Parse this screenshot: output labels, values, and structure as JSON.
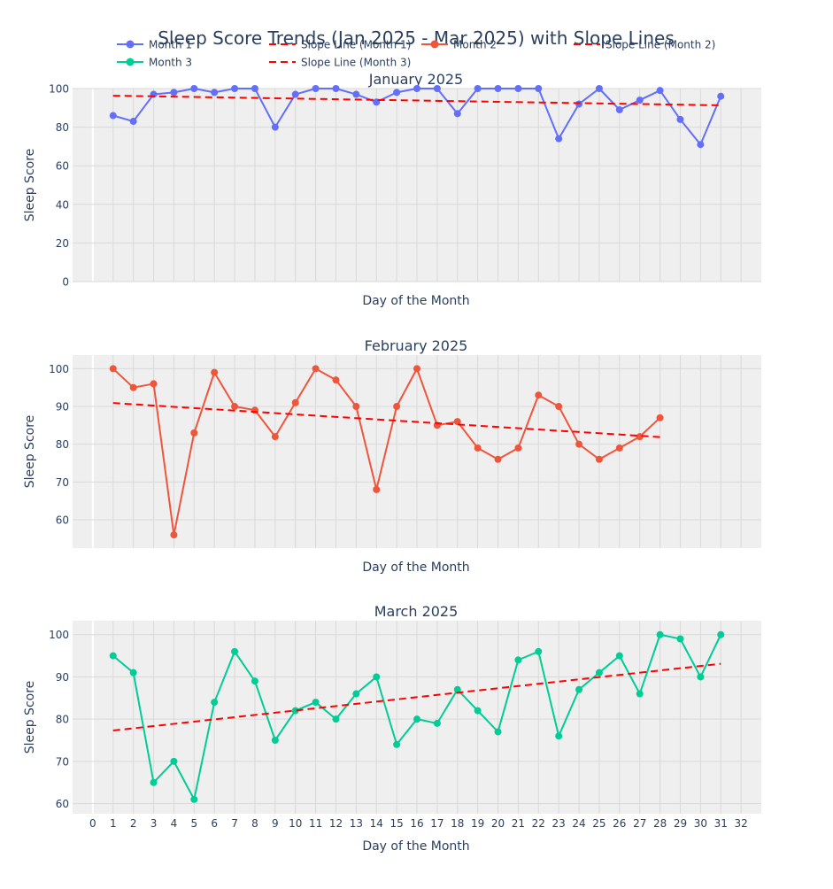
{
  "title": "Sleep Score Trends (Jan 2025 - Mar 2025) with Slope Lines",
  "legend": [
    {
      "name": "Month 1",
      "kind": "markers+lines",
      "color": "#636efa"
    },
    {
      "name": "Slope Line (Month 1)",
      "kind": "dash",
      "color": "#ff0000"
    },
    {
      "name": "Month 2",
      "kind": "markers+lines",
      "color": "#ef553b"
    },
    {
      "name": "Slope Line (Month 2)",
      "kind": "dash",
      "color": "#ff0000"
    },
    {
      "name": "Month 3",
      "kind": "markers+lines",
      "color": "#00cc96"
    },
    {
      "name": "Slope Line (Month 3)",
      "kind": "dash",
      "color": "#ff0000"
    }
  ],
  "colors": {
    "plot_bg": "#efefef",
    "grid": "#d9d9d9",
    "text": "#2a3f5f",
    "slope": "#ff0000"
  },
  "chart_data": [
    {
      "type": "line",
      "title": "January 2025",
      "xlabel": "Day of the Month",
      "ylabel": "Sleep Score",
      "xlim": [
        -1,
        33
      ],
      "ylim": [
        0,
        100
      ],
      "yticks": [
        0,
        20,
        40,
        60,
        80,
        100
      ],
      "series": [
        {
          "name": "Month 1",
          "color": "#636efa",
          "x": [
            1,
            2,
            3,
            4,
            5,
            6,
            7,
            8,
            9,
            10,
            11,
            12,
            13,
            14,
            15,
            16,
            17,
            18,
            19,
            20,
            21,
            22,
            23,
            24,
            25,
            26,
            27,
            28,
            29,
            30,
            31
          ],
          "y": [
            86,
            83,
            97,
            98,
            100,
            98,
            100,
            100,
            80,
            97,
            100,
            100,
            97,
            93,
            98,
            100,
            100,
            87,
            100,
            100,
            100,
            100,
            74,
            92,
            100,
            89,
            94,
            99,
            84,
            71,
            96
          ]
        },
        {
          "name": "Slope Line (Month 1)",
          "color": "#ff0000",
          "dash": true,
          "x": [
            1,
            31
          ],
          "y": [
            96.3,
            91.3
          ]
        }
      ]
    },
    {
      "type": "line",
      "title": "February 2025",
      "xlabel": "Day of the Month",
      "ylabel": "Sleep Score",
      "xlim": [
        -1,
        33
      ],
      "ylim": [
        52.5,
        103.6
      ],
      "yticks": [
        60,
        70,
        80,
        90,
        100
      ],
      "series": [
        {
          "name": "Month 2",
          "color": "#ef553b",
          "x": [
            1,
            2,
            3,
            4,
            5,
            6,
            7,
            8,
            9,
            10,
            11,
            12,
            13,
            14,
            15,
            16,
            17,
            18,
            19,
            20,
            21,
            22,
            23,
            24,
            25,
            26,
            27,
            28
          ],
          "y": [
            100,
            95,
            96,
            56,
            83,
            99,
            90,
            89,
            82,
            91,
            100,
            97,
            90,
            68,
            90,
            100,
            85,
            86,
            79,
            76,
            79,
            93,
            90,
            80,
            76,
            79,
            82,
            87
          ]
        },
        {
          "name": "Slope Line (Month 2)",
          "color": "#ff0000",
          "dash": true,
          "x": [
            1,
            28
          ],
          "y": [
            90.9,
            81.9
          ]
        }
      ]
    },
    {
      "type": "line",
      "title": "March 2025",
      "xlabel": "Day of the Month",
      "ylabel": "Sleep Score",
      "xlim": [
        -1,
        33
      ],
      "ylim": [
        57.6,
        103.3
      ],
      "yticks": [
        60,
        70,
        80,
        90,
        100
      ],
      "xticks": [
        0,
        1,
        2,
        3,
        4,
        5,
        6,
        7,
        8,
        9,
        10,
        11,
        12,
        13,
        14,
        15,
        16,
        17,
        18,
        19,
        20,
        21,
        22,
        23,
        24,
        25,
        26,
        27,
        28,
        29,
        30,
        31,
        32
      ],
      "series": [
        {
          "name": "Month 3",
          "color": "#00cc96",
          "x": [
            1,
            2,
            3,
            4,
            5,
            6,
            7,
            8,
            9,
            10,
            11,
            12,
            13,
            14,
            15,
            16,
            17,
            18,
            19,
            20,
            21,
            22,
            23,
            24,
            25,
            26,
            27,
            28,
            29,
            30,
            31
          ],
          "y": [
            95,
            91,
            65,
            70,
            61,
            84,
            96,
            89,
            75,
            82,
            84,
            80,
            86,
            90,
            74,
            80,
            79,
            87,
            82,
            77,
            94,
            96,
            76,
            87,
            91,
            95,
            86,
            100,
            99,
            90,
            100
          ]
        },
        {
          "name": "Slope Line (Month 3)",
          "color": "#ff0000",
          "dash": true,
          "x": [
            1,
            31
          ],
          "y": [
            77.3,
            93.1
          ]
        }
      ]
    }
  ]
}
